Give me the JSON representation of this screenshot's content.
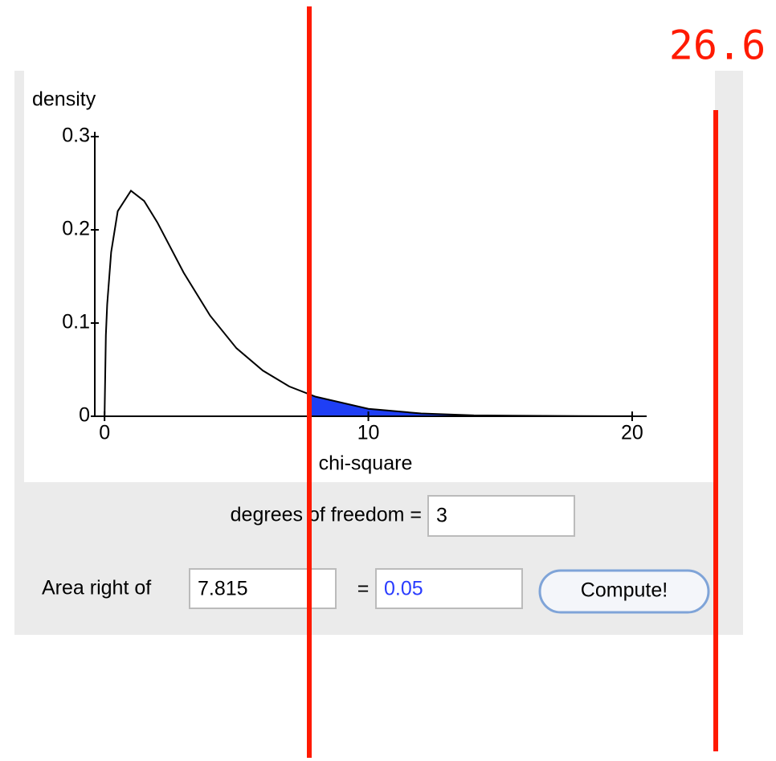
{
  "chart_data": {
    "type": "line",
    "y_label": "density",
    "x_label": "chi-square",
    "x": [
      0,
      0.05,
      0.1,
      0.25,
      0.5,
      1,
      1.5,
      2,
      3,
      4,
      5,
      6,
      7,
      8,
      10,
      12,
      14,
      16,
      18,
      20
    ],
    "values": [
      0,
      0.087,
      0.12,
      0.176,
      0.22,
      0.242,
      0.231,
      0.208,
      0.154,
      0.108,
      0.073,
      0.049,
      0.032,
      0.021,
      0.008,
      0.003,
      0.001,
      0.0005,
      0.0002,
      0.0001
    ],
    "color": "#000000",
    "shade_color": "#1f3ff5",
    "xlim": [
      -0.37,
      20.55
    ],
    "ylim": [
      0,
      0.3
    ],
    "xticks": [
      0,
      10,
      20
    ],
    "yticks": [
      0,
      0.1,
      0.2,
      0.3
    ]
  },
  "form": {
    "df_label": "degrees of freedom =",
    "df_value": "3",
    "area_label": "Area right of",
    "area_value": "7.815",
    "equals": "=",
    "result": "0.05",
    "button": "Compute!"
  },
  "annotation": "26.6"
}
